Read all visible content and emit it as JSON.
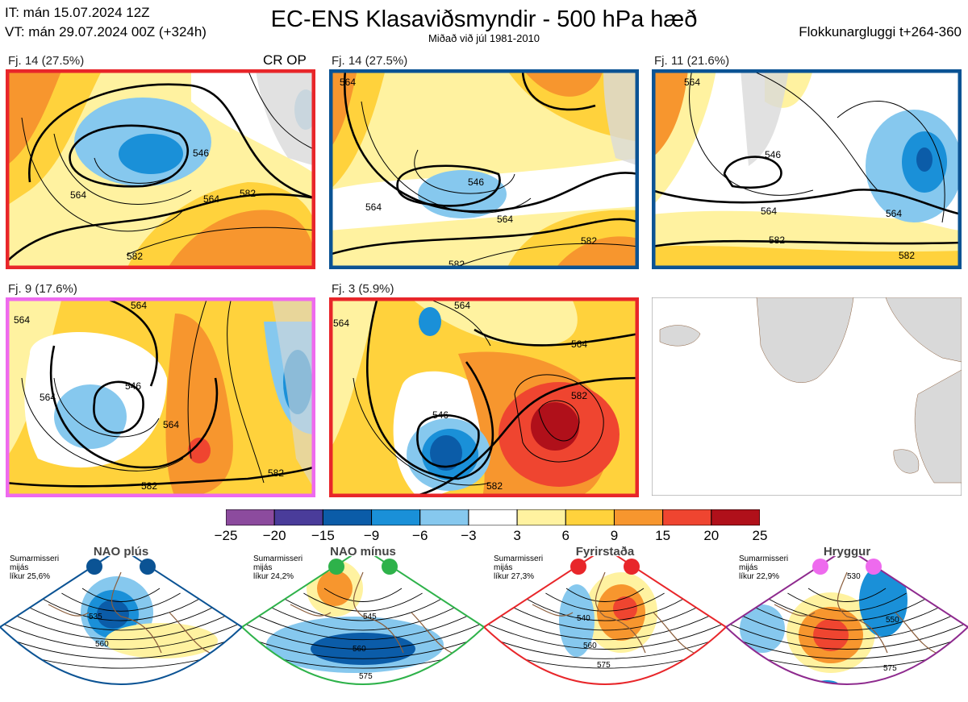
{
  "header": {
    "it_line": "IT: mán 15.07.2024 12Z",
    "vt_line": "VT: mán 29.07.2024 00Z  (+324h)",
    "title": "EC-ENS Klasaviðsmyndir - 500 hPa hæð",
    "subtitle": "Miðað við júl 1981-2010",
    "window": "Flokkunargluggi t+264-360"
  },
  "panels": [
    {
      "label": "Fj. 14 (27.5%)",
      "border": "#e8262a",
      "crop": "CR OP",
      "contours": [
        "546",
        "564",
        "564",
        "582",
        "582"
      ]
    },
    {
      "label": "Fj. 14 (27.5%)",
      "border": "#0b5394",
      "contours": [
        "564",
        "546",
        "564",
        "564",
        "582",
        "582"
      ]
    },
    {
      "label": "Fj. 11 (21.6%)",
      "border": "#0b5394",
      "contours": [
        "564",
        "546",
        "564",
        "564",
        "582",
        "582"
      ]
    },
    {
      "label": "Fj. 9 (17.6%)",
      "border": "#ee6aee",
      "contours": [
        "564",
        "564",
        "546",
        "564",
        "564",
        "582",
        "582"
      ]
    },
    {
      "label": "Fj. 3 (5.9%)",
      "border": "#e8262a",
      "contours": [
        "564",
        "564",
        "564",
        "546",
        "582",
        "582"
      ]
    }
  ],
  "colorbar": {
    "ticks": [
      "−25",
      "−20",
      "−15",
      "−9",
      "−6",
      "−3",
      "3",
      "6",
      "9",
      "15",
      "20",
      "25"
    ],
    "colors": [
      "#8c4b9e",
      "#4a3c9a",
      "#0b5ca8",
      "#1a90d8",
      "#86c8ee",
      "#ffffff",
      "#fff2a0",
      "#ffd23c",
      "#f7962e",
      "#ef4530",
      "#b0101a"
    ]
  },
  "regimes": [
    {
      "title": "NAO plús",
      "note": [
        "Sumarmisseri",
        "mijás",
        "líkur 25,6%"
      ],
      "dot": "#0b5394",
      "edge": "#0b5394",
      "contours": [
        "535",
        "560"
      ]
    },
    {
      "title": "NAO mínus",
      "note": [
        "Sumarmisseri",
        "mijás",
        "líkur 24,2%"
      ],
      "dot": "#2eb24a",
      "edge": "#2eb24a",
      "contours": [
        "545",
        "560",
        "575"
      ]
    },
    {
      "title": "Fyrirstaða",
      "note": [
        "Sumarmisseri",
        "mijás",
        "líkur 27,3%"
      ],
      "dot": "#e8262a",
      "edge": "#e8262a",
      "contours": [
        "540",
        "560",
        "575"
      ]
    },
    {
      "title": "Hryggur",
      "note": [
        "Sumarmisseri",
        "mijás",
        "líkur 22,9%"
      ],
      "dot": "#ee6aee",
      "edge": "#8e2a8e",
      "contours": [
        "530",
        "550",
        "575"
      ]
    }
  ]
}
